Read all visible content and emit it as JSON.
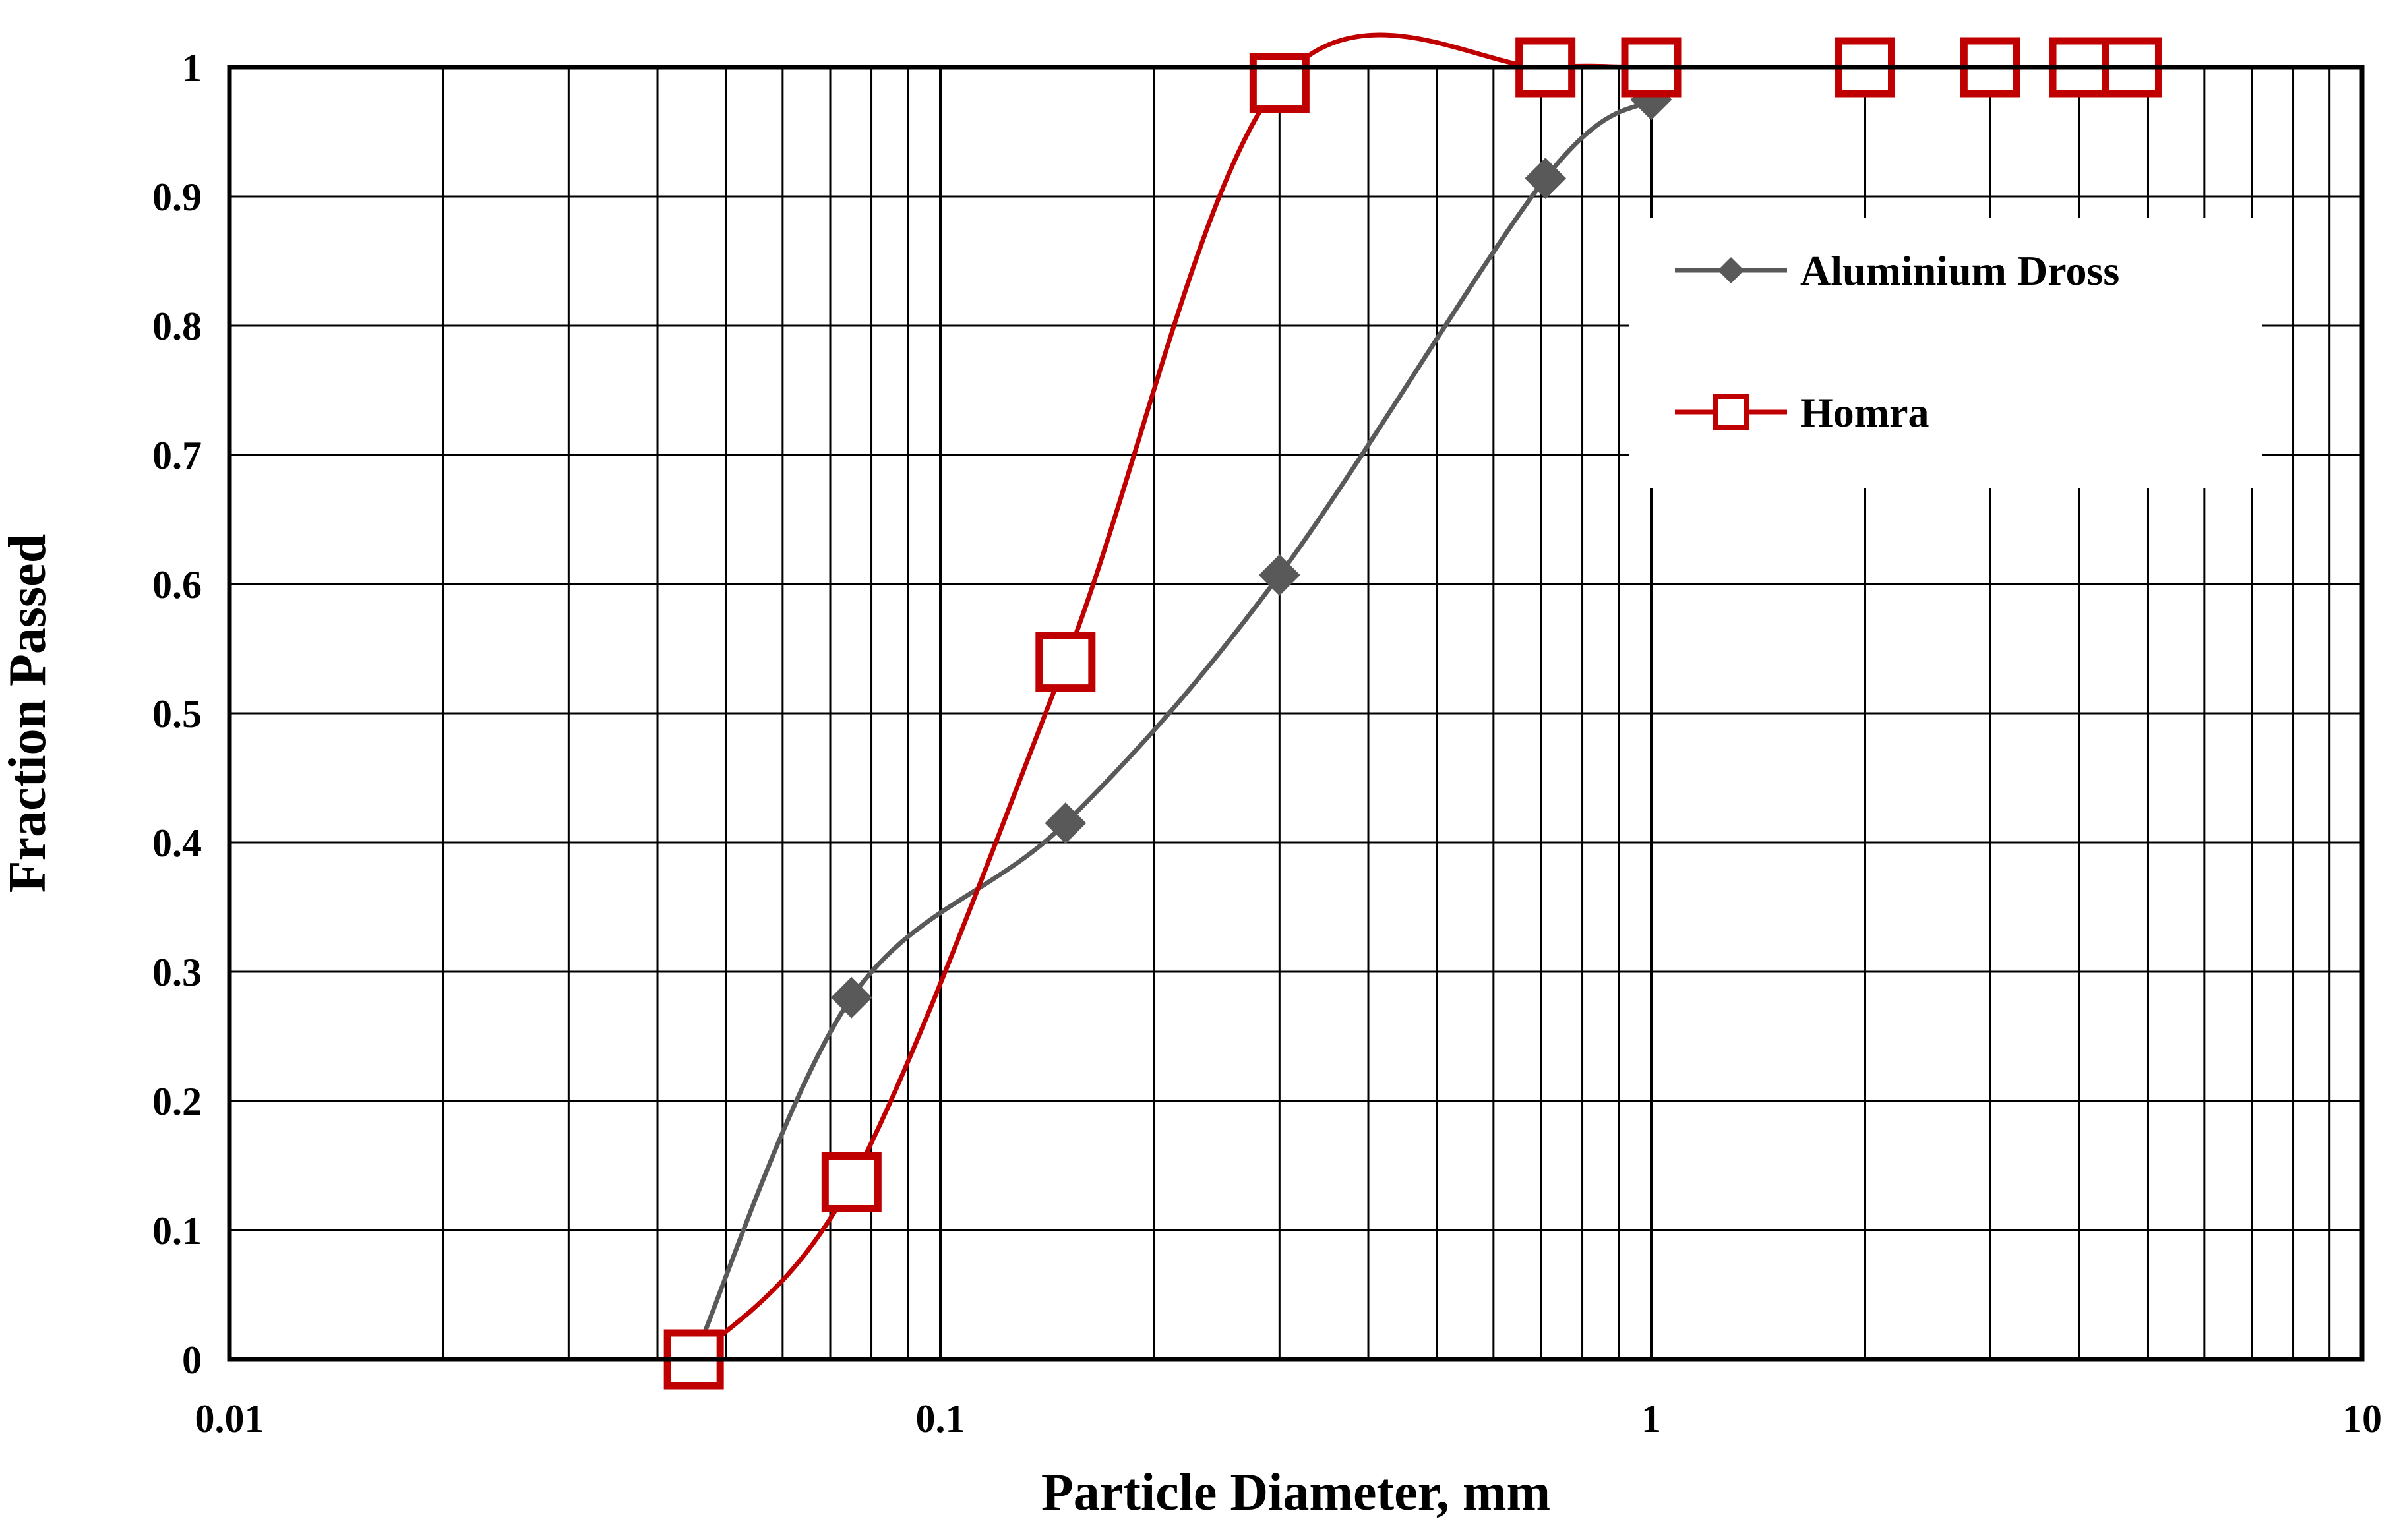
{
  "chart_data": {
    "type": "line",
    "xlabel": "Particle Diameter, mm",
    "ylabel": "Fraction Passed",
    "xscale": "log",
    "xlim": [
      0.01,
      10
    ],
    "ylim": [
      0,
      1
    ],
    "x_ticks": [
      0.01,
      0.1,
      1,
      10
    ],
    "x_tick_labels": [
      "0.01",
      "0.1",
      "1",
      "10"
    ],
    "y_ticks": [
      0,
      0.1,
      0.2,
      0.3,
      0.4,
      0.5,
      0.6,
      0.7,
      0.8,
      0.9,
      1
    ],
    "y_tick_labels": [
      "0",
      "0.1",
      "0.2",
      "0.3",
      "0.4",
      "0.5",
      "0.6",
      "0.7",
      "0.8",
      "0.9",
      "1"
    ],
    "grid": true,
    "legend_position": "top-right",
    "series": [
      {
        "name": "Aluminium Dross",
        "color": "#595959",
        "marker": "diamond",
        "x": [
          0.045,
          0.075,
          0.15,
          0.3,
          0.71,
          1.0
        ],
        "y": [
          0.0,
          0.28,
          0.415,
          0.607,
          0.914,
          0.975
        ]
      },
      {
        "name": "Homra",
        "color": "#C00000",
        "marker": "square-open",
        "x": [
          0.045,
          0.075,
          0.15,
          0.3,
          0.71,
          1.0,
          2.0,
          3.0,
          4.0,
          4.75
        ],
        "y": [
          0.0,
          0.137,
          0.54,
          0.988,
          1.0,
          1.0,
          1.0,
          1.0,
          1.0,
          1.0
        ]
      }
    ]
  }
}
